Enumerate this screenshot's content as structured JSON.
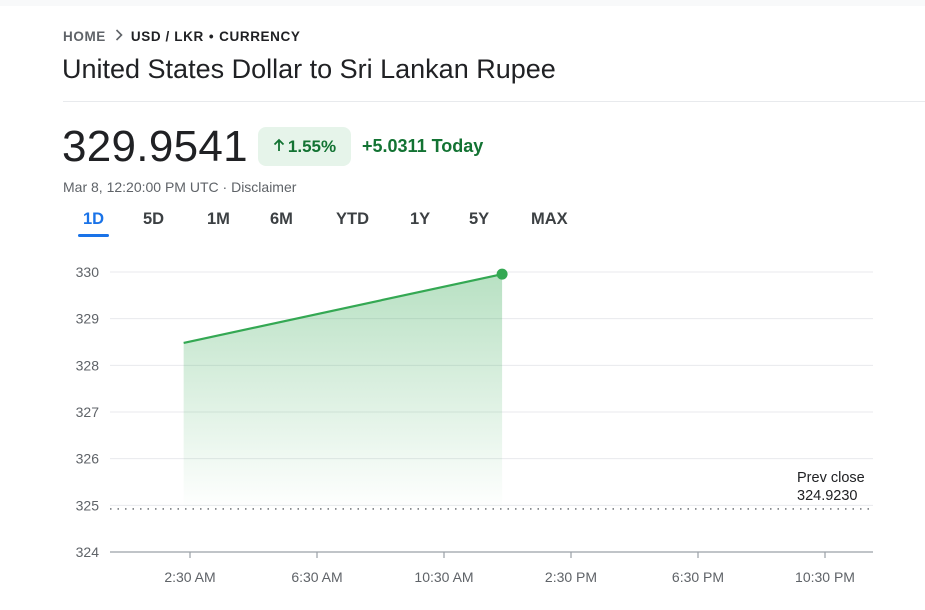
{
  "breadcrumb": {
    "home": "HOME",
    "pair": "USD / LKR",
    "separator_dot": "•",
    "type": "CURRENCY"
  },
  "title": "United States Dollar to Sri Lankan Rupee",
  "quote": {
    "price": "329.9541",
    "percent_change": "1.55%",
    "change_today": "+5.0311 Today",
    "timestamp": "Mar 8, 12:20:00 PM UTC",
    "timestamp_separator": " · ",
    "disclaimer": "Disclaimer"
  },
  "range_tabs": [
    {
      "label": "1D",
      "active": true
    },
    {
      "label": "5D",
      "active": false
    },
    {
      "label": "1M",
      "active": false
    },
    {
      "label": "6M",
      "active": false
    },
    {
      "label": "YTD",
      "active": false
    },
    {
      "label": "1Y",
      "active": false
    },
    {
      "label": "5Y",
      "active": false
    },
    {
      "label": "MAX",
      "active": false
    }
  ],
  "colors": {
    "positive": "#137333",
    "positive_bg": "#e6f4ea",
    "line": "#34a853",
    "accent": "#1a73e8",
    "text": "#202124",
    "muted": "#5f6368"
  },
  "chart_data": {
    "type": "area",
    "y_ticks": [
      "330",
      "329",
      "328",
      "327",
      "326",
      "325",
      "324"
    ],
    "x_ticks": [
      "2:30 AM",
      "6:30 AM",
      "10:30 AM",
      "2:30 PM",
      "6:30 PM",
      "10:30 PM"
    ],
    "ylim": [
      324,
      330
    ],
    "x_unit": "hours since midnight UTC",
    "series": [
      {
        "x": [
          2.3,
          12.33
        ],
        "values": [
          328.48,
          329.9541
        ]
      }
    ],
    "prev_close": {
      "label": "Prev close",
      "value": "324.9230",
      "y": 324.923
    },
    "grid": true
  }
}
